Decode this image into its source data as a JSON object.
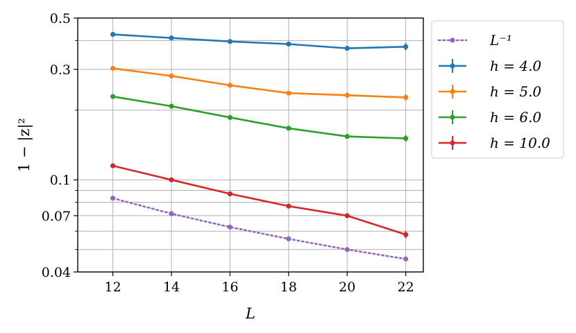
{
  "chart_data": {
    "type": "line",
    "xlabel": "L",
    "ylabel": "1 − |z|²",
    "yscale": "log",
    "xlim": [
      10.8,
      22.6
    ],
    "ylim": [
      0.04,
      0.5
    ],
    "x_ticks": [
      12,
      14,
      16,
      18,
      20,
      22
    ],
    "x_tick_labels": [
      "12",
      "14",
      "16",
      "18",
      "20",
      "22"
    ],
    "y_tick_labels": [
      {
        "value": 0.04,
        "label": "0.04"
      },
      {
        "value": 0.07,
        "label": "0.07"
      },
      {
        "value": 0.1,
        "label": "0.1"
      },
      {
        "value": 0.3,
        "label": "0.3"
      },
      {
        "value": 0.5,
        "label": "0.5"
      }
    ],
    "y_gridlines": [
      0.04,
      0.05,
      0.06,
      0.07,
      0.08,
      0.09,
      0.1,
      0.2,
      0.3,
      0.4,
      0.5
    ],
    "grid": true,
    "legend_position": "outside-right",
    "x": [
      12,
      14,
      16,
      18,
      20,
      22
    ],
    "series": [
      {
        "name": "L⁻¹",
        "color": "#9467bd",
        "style": "dotted",
        "values": [
          0.0833,
          0.0714,
          0.0625,
          0.0556,
          0.05,
          0.0455
        ]
      },
      {
        "name": "h = 4.0",
        "color": "#1f77b4",
        "style": "solid",
        "values": [
          0.425,
          0.41,
          0.396,
          0.386,
          0.37,
          0.376
        ],
        "errors": [
          0.004,
          0.004,
          0.005,
          0.005,
          0.006,
          0.013
        ]
      },
      {
        "name": "h = 5.0",
        "color": "#ff7f0e",
        "style": "solid",
        "values": [
          0.303,
          0.281,
          0.256,
          0.237,
          0.232,
          0.227
        ],
        "errors": [
          0.003,
          0.003,
          0.003,
          0.004,
          0.005,
          0.007
        ]
      },
      {
        "name": "h = 6.0",
        "color": "#2ca02c",
        "style": "solid",
        "values": [
          0.229,
          0.208,
          0.186,
          0.167,
          0.154,
          0.151
        ],
        "errors": [
          0.002,
          0.002,
          0.002,
          0.003,
          0.003,
          0.005
        ]
      },
      {
        "name": "h = 10.0",
        "color": "#d62728",
        "style": "solid",
        "values": [
          0.115,
          0.1,
          0.087,
          0.077,
          0.07,
          0.058
        ],
        "errors": [
          0.001,
          0.001,
          0.001,
          0.001,
          0.001,
          0.002
        ]
      }
    ]
  }
}
